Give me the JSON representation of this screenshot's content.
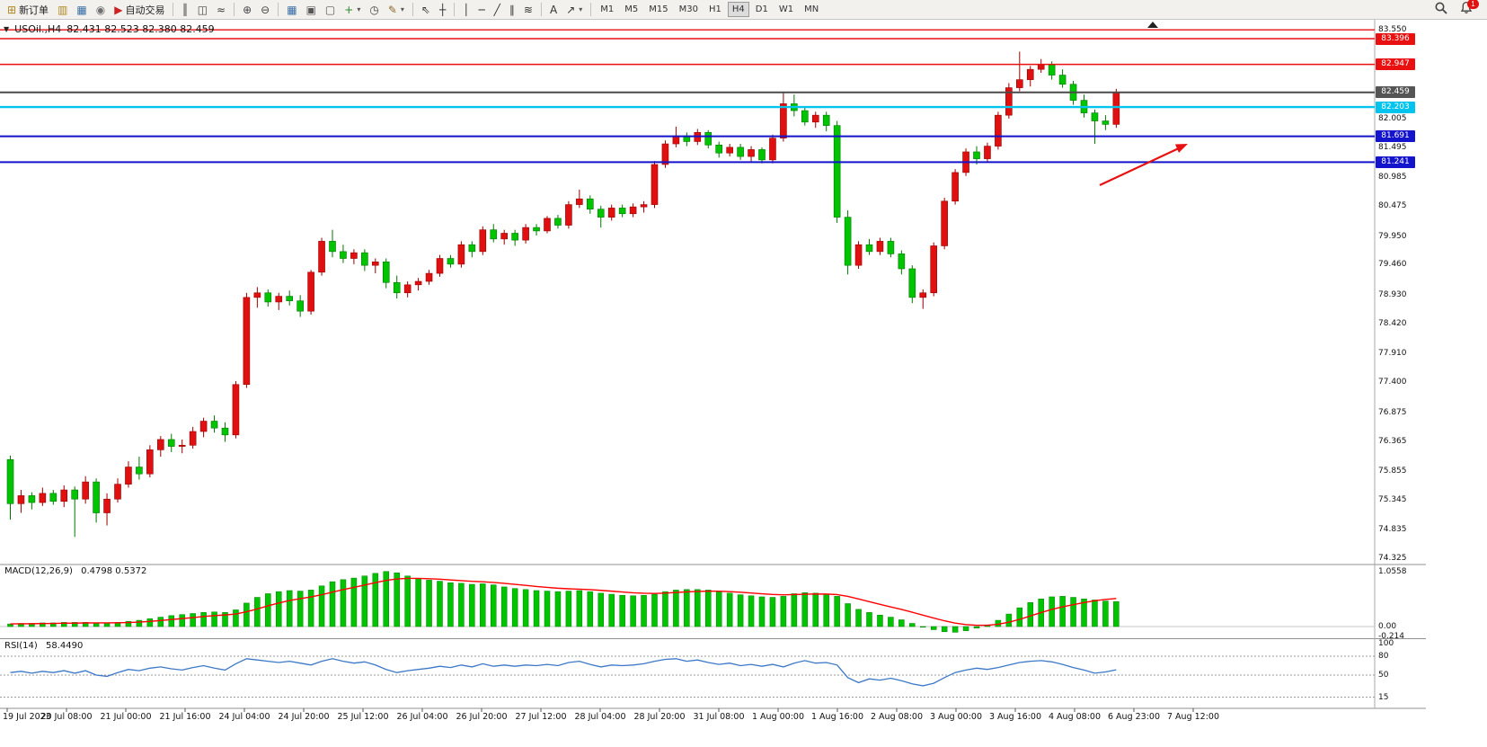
{
  "toolbar": {
    "items": [
      {
        "name": "new-order-button",
        "glyph": "⊞",
        "glyph_color": "#b08820",
        "label": "新订单"
      },
      {
        "name": "market-watch-button",
        "glyph": "▥",
        "glyph_color": "#b08820"
      },
      {
        "name": "data-window-button",
        "glyph": "▦",
        "glyph_color": "#3a6ea5"
      },
      {
        "name": "navigator-button",
        "glyph": "◉",
        "glyph_color": "#707070"
      },
      {
        "name": "auto-trading-button",
        "glyph": "▶",
        "glyph_color": "#cc2222",
        "label": "自动交易"
      },
      {
        "sep": true
      },
      {
        "name": "bar-chart-button",
        "glyph": "║",
        "glyph_color": "#444444"
      },
      {
        "name": "candlestick-chart-button",
        "glyph": "◫",
        "glyph_color": "#444444"
      },
      {
        "name": "line-chart-button",
        "glyph": "≈",
        "glyph_color": "#444444"
      },
      {
        "sep": true
      },
      {
        "name": "zoom-in-button",
        "glyph": "⊕",
        "glyph_color": "#444444"
      },
      {
        "name": "zoom-out-button",
        "glyph": "⊖",
        "glyph_color": "#444444"
      },
      {
        "sep": true
      },
      {
        "name": "tile-windows-button",
        "glyph": "▦",
        "glyph_color": "#3a6ea5"
      },
      {
        "name": "auto-arrange-button",
        "glyph": "▣",
        "glyph_color": "#555555"
      },
      {
        "name": "arrange-windows-button",
        "glyph": "▢",
        "glyph_color": "#555555"
      },
      {
        "name": "new-chart-button",
        "glyph": "+",
        "glyph_color": "#2a8a2a",
        "caret": true
      },
      {
        "name": "profiles-button",
        "glyph": "◷",
        "glyph_color": "#444444"
      },
      {
        "name": "indicators-button",
        "glyph": "✎",
        "glyph_color": "#8a6a2a",
        "caret": true
      },
      {
        "sep": true
      },
      {
        "name": "cursor-button",
        "glyph": "⇖",
        "glyph_color": "#333333"
      },
      {
        "name": "crosshair-button",
        "glyph": "┼",
        "glyph_color": "#333333"
      },
      {
        "sep": true
      },
      {
        "name": "vertical-line-button",
        "glyph": "│",
        "glyph_color": "#333333"
      },
      {
        "name": "horizontal-line-button",
        "glyph": "─",
        "glyph_color": "#333333"
      },
      {
        "name": "trendline-button",
        "glyph": "╱",
        "glyph_color": "#333333"
      },
      {
        "name": "equidistant-channel-button",
        "glyph": "∥",
        "glyph_color": "#333333"
      },
      {
        "name": "fibonacci-button",
        "glyph": "≋",
        "glyph_color": "#333333"
      },
      {
        "sep": true
      },
      {
        "name": "text-label-button",
        "glyph": "A",
        "glyph_color": "#333333"
      },
      {
        "name": "arrows-button",
        "glyph": "↗",
        "glyph_color": "#333333",
        "caret": true
      },
      {
        "sep": true
      }
    ],
    "timeframes": [
      "M1",
      "M5",
      "M15",
      "M30",
      "H1",
      "H4",
      "D1",
      "W1",
      "MN"
    ],
    "active_timeframe": "H4",
    "notification_count": "1"
  },
  "chart": {
    "collapse_icon": "▼",
    "symbol_timeframe": "USOil.,H4",
    "ohlc_text": "82.431 82.523 82.380 82.459"
  },
  "chart_data": {
    "type": "candlestick",
    "symbol": "USOil",
    "timeframe": "H4",
    "open": 82.431,
    "high": 82.523,
    "low": 82.38,
    "close": 82.459,
    "up_color": "#e01010",
    "down_color": "#00c400",
    "y_ticks": [
      83.55,
      82.005,
      81.495,
      80.985,
      80.475,
      79.95,
      79.46,
      78.93,
      78.42,
      77.91,
      77.4,
      76.875,
      76.365,
      75.855,
      75.345,
      74.835,
      74.325
    ],
    "time_labels": [
      "19 Jul 2023",
      "20 Jul 08:00",
      "21 Jul 00:00",
      "21 Jul 16:00",
      "24 Jul 04:00",
      "24 Jul 20:00",
      "25 Jul 12:00",
      "26 Jul 04:00",
      "26 Jul 20:00",
      "27 Jul 12:00",
      "28 Jul 04:00",
      "28 Jul 20:00",
      "31 Jul 08:00",
      "1 Aug 00:00",
      "1 Aug 16:00",
      "2 Aug 08:00",
      "3 Aug 00:00",
      "3 Aug 16:00",
      "4 Aug 08:00",
      "6 Aug 23:00",
      "7 Aug 12:00"
    ],
    "horizontal_lines": [
      {
        "price": 83.55,
        "color": "#e81010",
        "width": 1.4
      },
      {
        "price": 83.396,
        "color": "#e81010",
        "width": 1.4,
        "badge": "83.396",
        "badge_color": "#e81010"
      },
      {
        "price": 82.947,
        "color": "#e81010",
        "width": 1.4,
        "badge": "82.947",
        "badge_color": "#e81010"
      },
      {
        "price": 82.459,
        "color": "#4a4a4a",
        "width": 2,
        "badge": "82.459",
        "badge_color": "#555555"
      },
      {
        "price": 82.203,
        "color": "#00c4ee",
        "width": 2.4,
        "badge": "82.203",
        "badge_color": "#00c4ee"
      },
      {
        "price": 81.691,
        "color": "#1313cc",
        "width": 2,
        "badge": "81.691",
        "badge_color": "#1414cc"
      },
      {
        "price": 81.241,
        "color": "#1313cc",
        "width": 2,
        "badge": "81.241",
        "badge_color": "#1414cc"
      }
    ],
    "arrow_annotation": {
      "shape": "arrow",
      "direction": "up-right",
      "color": "#e81010"
    },
    "candles": [
      [
        76.05,
        76.12,
        75.0,
        75.28
      ],
      [
        75.28,
        75.52,
        75.12,
        75.42
      ],
      [
        75.42,
        75.48,
        75.18,
        75.3
      ],
      [
        75.3,
        75.56,
        75.24,
        75.46
      ],
      [
        75.46,
        75.52,
        75.26,
        75.32
      ],
      [
        75.32,
        75.6,
        75.22,
        75.52
      ],
      [
        75.52,
        75.58,
        74.7,
        75.36
      ],
      [
        75.36,
        75.76,
        75.28,
        75.66
      ],
      [
        75.66,
        75.72,
        74.95,
        75.12
      ],
      [
        75.12,
        75.46,
        74.9,
        75.36
      ],
      [
        75.36,
        75.72,
        75.3,
        75.62
      ],
      [
        75.62,
        76.02,
        75.56,
        75.92
      ],
      [
        75.92,
        76.1,
        75.7,
        75.8
      ],
      [
        75.8,
        76.3,
        75.74,
        76.22
      ],
      [
        76.22,
        76.46,
        76.1,
        76.4
      ],
      [
        76.4,
        76.5,
        76.18,
        76.28
      ],
      [
        76.28,
        76.4,
        76.16,
        76.3
      ],
      [
        76.3,
        76.62,
        76.24,
        76.54
      ],
      [
        76.54,
        76.78,
        76.44,
        76.72
      ],
      [
        76.72,
        76.82,
        76.52,
        76.6
      ],
      [
        76.6,
        76.7,
        76.36,
        76.48
      ],
      [
        76.48,
        77.42,
        76.42,
        77.36
      ],
      [
        77.36,
        78.96,
        77.3,
        78.88
      ],
      [
        78.88,
        79.06,
        78.7,
        78.96
      ],
      [
        78.96,
        79.02,
        78.72,
        78.8
      ],
      [
        78.8,
        78.96,
        78.66,
        78.9
      ],
      [
        78.9,
        79.0,
        78.74,
        78.82
      ],
      [
        78.82,
        78.92,
        78.54,
        78.64
      ],
      [
        78.64,
        79.36,
        78.58,
        79.32
      ],
      [
        79.32,
        79.92,
        79.26,
        79.86
      ],
      [
        79.86,
        80.06,
        79.58,
        79.68
      ],
      [
        79.68,
        79.8,
        79.48,
        79.56
      ],
      [
        79.56,
        79.72,
        79.46,
        79.66
      ],
      [
        79.66,
        79.72,
        79.34,
        79.44
      ],
      [
        79.44,
        79.56,
        79.3,
        79.5
      ],
      [
        79.5,
        79.56,
        79.04,
        79.14
      ],
      [
        79.14,
        79.26,
        78.86,
        78.96
      ],
      [
        78.96,
        79.16,
        78.88,
        79.1
      ],
      [
        79.1,
        79.22,
        79.0,
        79.16
      ],
      [
        79.16,
        79.36,
        79.1,
        79.3
      ],
      [
        79.3,
        79.62,
        79.24,
        79.56
      ],
      [
        79.56,
        79.62,
        79.4,
        79.46
      ],
      [
        79.46,
        79.86,
        79.4,
        79.8
      ],
      [
        79.8,
        79.86,
        79.58,
        79.68
      ],
      [
        79.68,
        80.12,
        79.62,
        80.06
      ],
      [
        80.06,
        80.16,
        79.84,
        79.9
      ],
      [
        79.9,
        80.06,
        79.8,
        80.0
      ],
      [
        80.0,
        80.06,
        79.78,
        79.88
      ],
      [
        79.88,
        80.16,
        79.82,
        80.1
      ],
      [
        80.1,
        80.16,
        79.96,
        80.04
      ],
      [
        80.04,
        80.3,
        80.0,
        80.26
      ],
      [
        80.26,
        80.32,
        80.08,
        80.14
      ],
      [
        80.14,
        80.56,
        80.08,
        80.5
      ],
      [
        80.5,
        80.76,
        80.44,
        80.6
      ],
      [
        80.6,
        80.66,
        80.34,
        80.42
      ],
      [
        80.42,
        80.48,
        80.1,
        80.28
      ],
      [
        80.28,
        80.5,
        80.22,
        80.44
      ],
      [
        80.44,
        80.5,
        80.28,
        80.34
      ],
      [
        80.34,
        80.52,
        80.28,
        80.46
      ],
      [
        80.46,
        80.56,
        80.36,
        80.5
      ],
      [
        80.5,
        81.26,
        80.44,
        81.2
      ],
      [
        81.2,
        81.62,
        81.14,
        81.56
      ],
      [
        81.56,
        81.86,
        81.5,
        81.7
      ],
      [
        81.7,
        81.76,
        81.52,
        81.6
      ],
      [
        81.6,
        81.82,
        81.54,
        81.76
      ],
      [
        81.76,
        81.8,
        81.48,
        81.54
      ],
      [
        81.54,
        81.6,
        81.32,
        81.4
      ],
      [
        81.4,
        81.56,
        81.34,
        81.5
      ],
      [
        81.5,
        81.56,
        81.28,
        81.34
      ],
      [
        81.34,
        81.52,
        81.24,
        81.46
      ],
      [
        81.46,
        81.5,
        81.22,
        81.28
      ],
      [
        81.28,
        81.72,
        81.22,
        81.66
      ],
      [
        81.66,
        82.46,
        81.6,
        82.26
      ],
      [
        82.26,
        82.42,
        82.04,
        82.14
      ],
      [
        82.14,
        82.2,
        81.88,
        81.94
      ],
      [
        81.94,
        82.12,
        81.84,
        82.06
      ],
      [
        82.06,
        82.12,
        81.78,
        81.88
      ],
      [
        81.88,
        81.96,
        80.18,
        80.28
      ],
      [
        80.28,
        80.4,
        79.28,
        79.44
      ],
      [
        79.44,
        79.86,
        79.38,
        79.8
      ],
      [
        79.8,
        79.9,
        79.62,
        79.68
      ],
      [
        79.68,
        79.92,
        79.62,
        79.86
      ],
      [
        79.86,
        79.92,
        79.58,
        79.64
      ],
      [
        79.64,
        79.7,
        79.28,
        79.38
      ],
      [
        79.38,
        79.44,
        78.78,
        78.88
      ],
      [
        78.88,
        79.02,
        78.68,
        78.96
      ],
      [
        78.96,
        79.84,
        78.9,
        79.78
      ],
      [
        79.78,
        80.62,
        79.72,
        80.56
      ],
      [
        80.56,
        81.12,
        80.5,
        81.06
      ],
      [
        81.06,
        81.48,
        81.0,
        81.42
      ],
      [
        81.42,
        81.52,
        81.2,
        81.3
      ],
      [
        81.3,
        81.58,
        81.24,
        81.52
      ],
      [
        81.52,
        82.12,
        81.46,
        82.06
      ],
      [
        82.06,
        82.62,
        82.0,
        82.54
      ],
      [
        82.54,
        83.17,
        82.48,
        82.68
      ],
      [
        82.68,
        82.92,
        82.56,
        82.86
      ],
      [
        82.86,
        83.04,
        82.8,
        82.94
      ],
      [
        82.94,
        83.0,
        82.68,
        82.76
      ],
      [
        82.76,
        82.86,
        82.54,
        82.6
      ],
      [
        82.6,
        82.66,
        82.24,
        82.32
      ],
      [
        82.32,
        82.42,
        82.02,
        82.1
      ],
      [
        82.1,
        82.16,
        81.56,
        81.96
      ],
      [
        81.96,
        82.06,
        81.8,
        81.9
      ],
      [
        81.9,
        82.52,
        81.84,
        82.46
      ]
    ],
    "macd": {
      "label": "MACD(12,26,9)",
      "values_text": "0.4798 0.5372",
      "main_value": 0.4798,
      "signal_value": 0.5372,
      "histogram_color": "#00c400",
      "signal_color": "#ff0000",
      "scale_labels": [
        1.0558,
        0.0,
        -0.214
      ],
      "histogram": [
        0.05,
        0.06,
        0.06,
        0.07,
        0.07,
        0.08,
        0.08,
        0.08,
        0.07,
        0.07,
        0.08,
        0.1,
        0.12,
        0.15,
        0.18,
        0.21,
        0.23,
        0.25,
        0.27,
        0.28,
        0.27,
        0.32,
        0.45,
        0.56,
        0.63,
        0.67,
        0.69,
        0.68,
        0.7,
        0.78,
        0.86,
        0.9,
        0.93,
        0.97,
        1.02,
        1.0558,
        1.03,
        0.97,
        0.92,
        0.89,
        0.87,
        0.84,
        0.83,
        0.81,
        0.82,
        0.8,
        0.76,
        0.73,
        0.71,
        0.69,
        0.68,
        0.67,
        0.68,
        0.69,
        0.67,
        0.64,
        0.62,
        0.6,
        0.59,
        0.6,
        0.62,
        0.67,
        0.7,
        0.71,
        0.71,
        0.7,
        0.67,
        0.64,
        0.61,
        0.59,
        0.57,
        0.56,
        0.58,
        0.63,
        0.65,
        0.64,
        0.62,
        0.58,
        0.44,
        0.33,
        0.27,
        0.22,
        0.18,
        0.13,
        0.06,
        0.0,
        -0.06,
        -0.1,
        -0.11,
        -0.08,
        -0.03,
        0.03,
        0.12,
        0.24,
        0.36,
        0.46,
        0.53,
        0.57,
        0.58,
        0.56,
        0.53,
        0.51,
        0.49,
        0.4798
      ],
      "signal": [
        0.05,
        0.052,
        0.054,
        0.057,
        0.06,
        0.063,
        0.066,
        0.069,
        0.07,
        0.07,
        0.072,
        0.077,
        0.086,
        0.099,
        0.115,
        0.134,
        0.153,
        0.172,
        0.192,
        0.21,
        0.222,
        0.241,
        0.283,
        0.338,
        0.397,
        0.452,
        0.499,
        0.535,
        0.568,
        0.61,
        0.66,
        0.708,
        0.752,
        0.796,
        0.841,
        0.884,
        0.913,
        0.924,
        0.924,
        0.917,
        0.908,
        0.894,
        0.881,
        0.867,
        0.858,
        0.846,
        0.829,
        0.809,
        0.789,
        0.769,
        0.751,
        0.735,
        0.724,
        0.717,
        0.708,
        0.694,
        0.679,
        0.663,
        0.648,
        0.639,
        0.635,
        0.642,
        0.654,
        0.665,
        0.674,
        0.679,
        0.677,
        0.67,
        0.658,
        0.644,
        0.629,
        0.615,
        0.608,
        0.613,
        0.62,
        0.624,
        0.623,
        0.614,
        0.579,
        0.529,
        0.477,
        0.426,
        0.377,
        0.328,
        0.274,
        0.219,
        0.163,
        0.11,
        0.066,
        0.037,
        0.024,
        0.025,
        0.044,
        0.083,
        0.138,
        0.203,
        0.268,
        0.328,
        0.378,
        0.42,
        0.46,
        0.495,
        0.52,
        0.5372
      ]
    },
    "rsi": {
      "label": "RSI(14)",
      "value_text": "58.4490",
      "value": 58.449,
      "line_color": "#3c78c8",
      "levels": [
        80,
        50,
        15
      ],
      "scale_labels": [
        100,
        80,
        50,
        15
      ],
      "values": [
        54,
        56,
        53,
        56,
        54,
        57,
        53,
        57,
        50,
        48,
        54,
        59,
        57,
        61,
        63,
        60,
        58,
        62,
        65,
        61,
        58,
        68,
        76,
        74,
        72,
        70,
        72,
        69,
        66,
        72,
        76,
        72,
        69,
        71,
        66,
        59,
        54,
        57,
        59,
        61,
        64,
        62,
        66,
        63,
        68,
        64,
        66,
        64,
        66,
        65,
        67,
        65,
        70,
        72,
        67,
        63,
        66,
        65,
        66,
        68,
        72,
        75,
        76,
        72,
        74,
        70,
        67,
        69,
        65,
        67,
        64,
        67,
        63,
        69,
        73,
        69,
        70,
        66,
        46,
        38,
        44,
        42,
        45,
        41,
        36,
        33,
        37,
        46,
        54,
        58,
        61,
        59,
        62,
        66,
        70,
        72,
        73,
        71,
        67,
        62,
        58,
        53,
        55,
        58.45
      ]
    }
  }
}
